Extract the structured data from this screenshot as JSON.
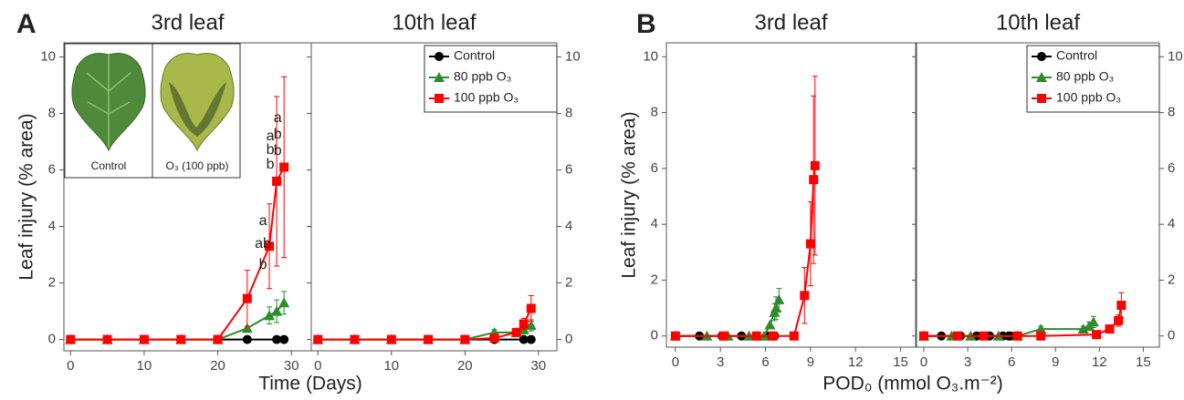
{
  "chart_data": [
    {
      "type": "line",
      "panel": "A",
      "title": "3rd leaf",
      "ylabel": "Leaf injury (% area)",
      "xlabel": "Time (Days)",
      "xlim": [
        -0.9,
        32.7
      ],
      "xticks": [
        0,
        10,
        20,
        30
      ],
      "ylim": [
        -0.4,
        10.5
      ],
      "yticks": [
        0,
        2,
        4,
        6,
        8,
        10
      ],
      "yaxis": "left",
      "inset": {
        "labels": [
          "Control",
          "O₃ (100 ppb)"
        ]
      },
      "annotations": [
        {
          "x": 27,
          "texts": [
            "a",
            "ab",
            "b"
          ]
        },
        {
          "x": 28,
          "texts": [
            "a",
            "b",
            "b"
          ]
        },
        {
          "x": 29,
          "texts": [
            "a",
            "b",
            "b"
          ]
        }
      ],
      "series": [
        {
          "color": "#000000",
          "marker": "circle",
          "x": [
            0,
            5,
            10,
            15,
            20,
            24,
            28,
            29
          ],
          "values": [
            0,
            0,
            0,
            0,
            0,
            0,
            0,
            0
          ]
        },
        {
          "color": "#2e8b2e",
          "marker": "triangle",
          "x": [
            0,
            5,
            10,
            15,
            20,
            24,
            27,
            28,
            29
          ],
          "values": [
            0,
            0,
            0,
            0,
            0,
            0.4,
            0.85,
            1.0,
            1.3
          ],
          "errors": [
            0,
            0,
            0,
            0,
            0,
            0,
            0.3,
            0.4,
            0.4
          ]
        },
        {
          "color": "#ff0000",
          "marker": "square",
          "x": [
            0,
            5,
            10,
            15,
            20,
            24,
            27,
            28,
            29
          ],
          "values": [
            0,
            0,
            0,
            0,
            0,
            1.45,
            3.3,
            5.6,
            6.1
          ],
          "errors": [
            0,
            0,
            0,
            0,
            0,
            1.0,
            1.5,
            3.0,
            3.2
          ]
        }
      ]
    },
    {
      "type": "line",
      "title": "10th leaf",
      "xlim": [
        -0.9,
        32.5
      ],
      "xticks": [
        0,
        10,
        20,
        30
      ],
      "ylim": [
        -0.4,
        10.5
      ],
      "yticks": [
        0,
        2,
        4,
        6,
        8,
        10
      ],
      "yaxis": "right",
      "legend": "upper right",
      "series": [
        {
          "name": "Control",
          "color": "#000000",
          "marker": "circle",
          "x": [
            0,
            5,
            10,
            15,
            20,
            24,
            28,
            29
          ],
          "values": [
            0,
            0,
            0,
            0,
            0,
            0,
            0,
            0
          ]
        },
        {
          "name": "80 ppb O₃",
          "color": "#2e8b2e",
          "marker": "triangle",
          "x": [
            0,
            5,
            10,
            15,
            20,
            24,
            27,
            28,
            29
          ],
          "values": [
            0,
            0,
            0,
            0,
            0,
            0.25,
            0.25,
            0.35,
            0.5
          ],
          "errors": [
            0,
            0,
            0,
            0,
            0,
            0.1,
            0.1,
            0.15,
            0.2
          ]
        },
        {
          "name": "100 ppb O₃",
          "color": "#ff0000",
          "marker": "square",
          "x": [
            0,
            5,
            10,
            15,
            20,
            24,
            27,
            28,
            29
          ],
          "values": [
            0,
            0,
            0,
            0,
            0,
            0.05,
            0.25,
            0.55,
            1.1
          ],
          "errors": [
            0,
            0,
            0,
            0,
            0,
            0,
            0.1,
            0.2,
            0.45
          ]
        }
      ]
    },
    {
      "type": "line",
      "panel": "B",
      "title": "3rd leaf",
      "ylabel": "Leaf injury (% area)",
      "xlabel": "POD₀ (mmol O₃.m⁻²)",
      "xlim": [
        -0.6,
        16.0
      ],
      "xticks": [
        0,
        3,
        6,
        9,
        12,
        15
      ],
      "ylim": [
        -0.4,
        10.5
      ],
      "yticks": [
        0,
        2,
        4,
        6,
        8,
        10
      ],
      "yaxis": "left",
      "series": [
        {
          "color": "#000000",
          "marker": "circle",
          "x": [
            0,
            1.6,
            3.1,
            4.4,
            5.4,
            6.2,
            6.5,
            6.6
          ],
          "values": [
            0,
            0,
            0,
            0,
            0,
            0,
            0,
            0
          ]
        },
        {
          "color": "#2e8b2e",
          "marker": "triangle",
          "x": [
            0,
            2.1,
            3.5,
            4.9,
            5.9,
            6.3,
            6.6,
            6.7,
            6.9
          ],
          "values": [
            0,
            0,
            0,
            0,
            0,
            0.4,
            0.85,
            1.0,
            1.3
          ],
          "errors": [
            0,
            0,
            0,
            0,
            0,
            0,
            0.3,
            0.4,
            0.4
          ]
        },
        {
          "color": "#ff0000",
          "marker": "square",
          "x": [
            0,
            3.2,
            5.4,
            6.5,
            7.9,
            8.6,
            9.0,
            9.2,
            9.3
          ],
          "values": [
            0,
            0,
            0,
            0,
            0,
            1.45,
            3.3,
            5.6,
            6.1
          ],
          "errors": [
            0,
            0,
            0,
            0,
            0,
            1.0,
            1.5,
            3.0,
            3.2
          ]
        }
      ]
    },
    {
      "type": "line",
      "title": "10th leaf",
      "xlim": [
        -0.5,
        16.1
      ],
      "xticks": [
        0,
        3,
        6,
        9,
        12,
        15
      ],
      "ylim": [
        -0.4,
        10.5
      ],
      "yticks": [
        0,
        2,
        4,
        6,
        8,
        10
      ],
      "yaxis": "right",
      "legend": "upper right",
      "series": [
        {
          "name": "Control",
          "color": "#000000",
          "marker": "circle",
          "x": [
            0,
            1.2,
            2.5,
            3.6,
            4.5,
            5.4,
            5.8,
            5.9
          ],
          "values": [
            0,
            0,
            0,
            0,
            0,
            0,
            0,
            0
          ]
        },
        {
          "name": "80 ppb O₃",
          "color": "#2e8b2e",
          "marker": "triangle",
          "x": [
            0,
            1.9,
            3.2,
            5.1,
            6.4,
            8.0,
            10.9,
            11.3,
            11.6
          ],
          "values": [
            0,
            0,
            0,
            0,
            0,
            0.25,
            0.25,
            0.35,
            0.5
          ],
          "errors": [
            0,
            0,
            0,
            0,
            0,
            0.1,
            0.1,
            0.15,
            0.2
          ]
        },
        {
          "name": "100 ppb O₃",
          "color": "#ff0000",
          "marker": "square",
          "x": [
            0,
            2.3,
            4.1,
            6.4,
            8.0,
            11.8,
            12.7,
            13.3,
            13.5
          ],
          "values": [
            0,
            0,
            0,
            0,
            0,
            0.05,
            0.25,
            0.55,
            1.1
          ],
          "errors": [
            0,
            0,
            0,
            0,
            0,
            0,
            0.1,
            0.2,
            0.45
          ]
        }
      ]
    }
  ]
}
